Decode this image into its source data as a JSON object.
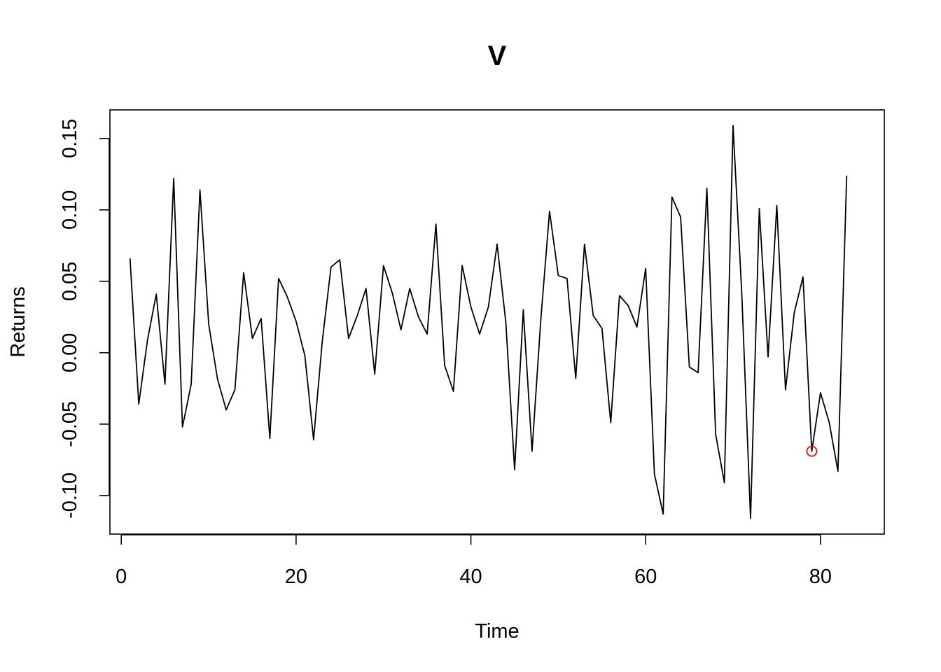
{
  "chart_data": {
    "type": "line",
    "title": "V",
    "xlabel": "Time",
    "ylabel": "Returns",
    "xlim": [
      -1.3,
      87.3
    ],
    "ylim": [
      -0.127,
      0.17
    ],
    "x_ticks": [
      0,
      20,
      40,
      60,
      80
    ],
    "x_tick_labels": [
      "0",
      "20",
      "40",
      "60",
      "80"
    ],
    "y_ticks": [
      -0.1,
      -0.05,
      0.0,
      0.05,
      0.1,
      0.15
    ],
    "y_tick_labels": [
      "-0.10",
      "-0.05",
      "0.00",
      "0.05",
      "0.10",
      "0.15"
    ],
    "grid": false,
    "line_color": "#000000",
    "highlight_color": "#ff0000",
    "series": [
      {
        "x": [
          1,
          2,
          3,
          4,
          5,
          6,
          7,
          8,
          9,
          10,
          11,
          12,
          13,
          14,
          15,
          16,
          17,
          18,
          19,
          20,
          21,
          22,
          23,
          24,
          25,
          26,
          27,
          28,
          29,
          30,
          31,
          32,
          33,
          34,
          35,
          36,
          37,
          38,
          39,
          40,
          41,
          42,
          43,
          44,
          45,
          46,
          47,
          48,
          49,
          50,
          51,
          52,
          53,
          54,
          55,
          56,
          57,
          58,
          59,
          60,
          61,
          62,
          63,
          64,
          65,
          66,
          67,
          68,
          69,
          70,
          71,
          72,
          73,
          74,
          75,
          76,
          77,
          78,
          79,
          80,
          81,
          82,
          83
        ],
        "values": [
          0.066,
          -0.036,
          0.009,
          0.041,
          -0.022,
          0.122,
          -0.052,
          -0.022,
          0.114,
          0.02,
          -0.018,
          -0.04,
          -0.026,
          0.056,
          0.01,
          0.024,
          -0.06,
          0.052,
          0.039,
          0.022,
          -0.002,
          -0.061,
          0.008,
          0.06,
          0.065,
          0.01,
          0.026,
          0.045,
          -0.015,
          0.061,
          0.042,
          0.016,
          0.045,
          0.025,
          0.013,
          0.09,
          -0.009,
          -0.027,
          0.061,
          0.032,
          0.013,
          0.032,
          0.076,
          0.021,
          -0.082,
          0.03,
          -0.069,
          0.023,
          0.099,
          0.054,
          0.052,
          -0.018,
          0.076,
          0.026,
          0.017,
          -0.049,
          0.04,
          0.033,
          0.018,
          0.059,
          -0.085,
          -0.113,
          0.109,
          0.095,
          -0.01,
          -0.014,
          0.115,
          -0.057,
          -0.091,
          0.159,
          0.041,
          -0.116,
          0.101,
          -0.003,
          0.103,
          -0.026,
          0.028,
          0.053,
          -0.069,
          -0.028,
          -0.049,
          -0.083,
          0.124
        ]
      }
    ],
    "highlight_point": {
      "x": 79,
      "y": -0.069
    }
  }
}
